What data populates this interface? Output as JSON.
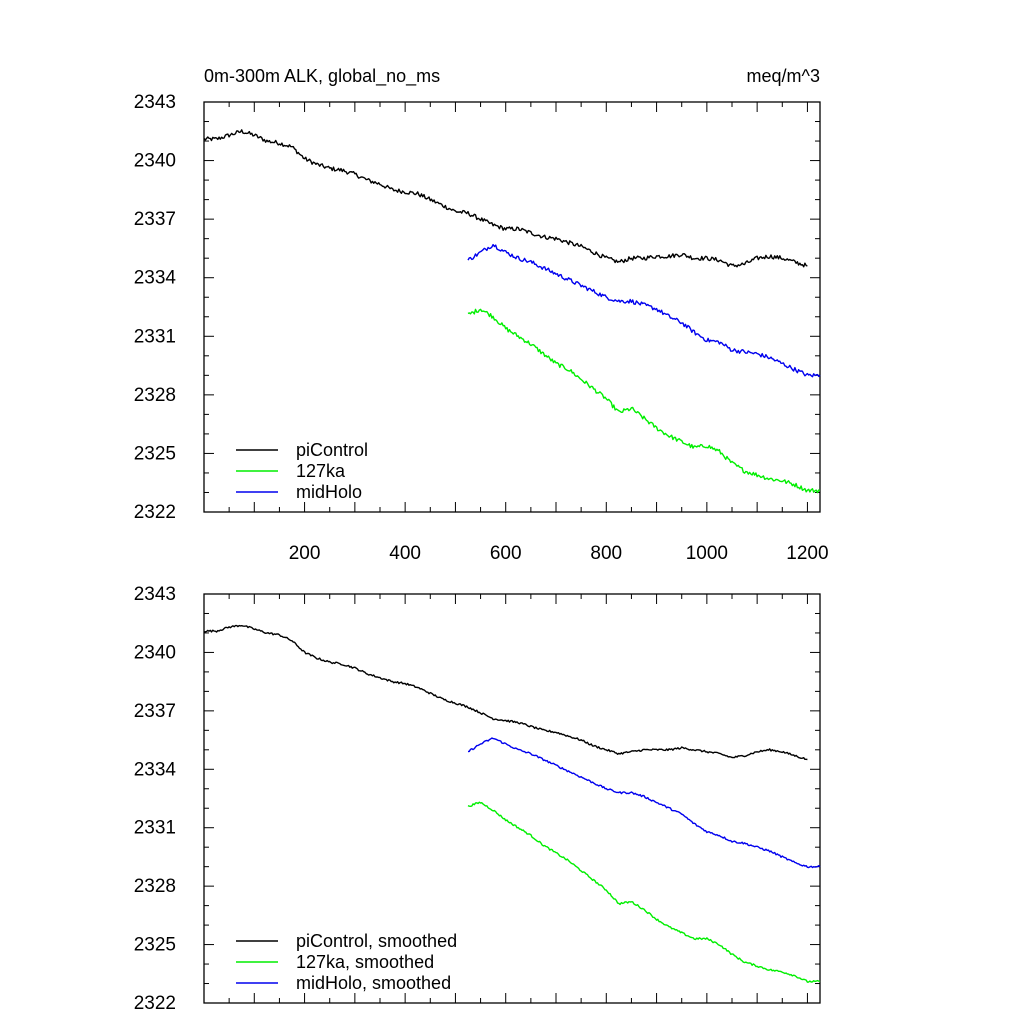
{
  "chart_data": [
    {
      "type": "line",
      "title": "0m-300m ALK, global_no_ms",
      "units": "meq/m^3",
      "xlim": [
        0,
        1225
      ],
      "ylim": [
        2322,
        2343
      ],
      "xticks": [
        200,
        400,
        600,
        800,
        1000,
        1200
      ],
      "xtick_labels": [
        "200",
        "400",
        "600",
        "800",
        "1000",
        "1200"
      ],
      "yticks": [
        2322,
        2325,
        2328,
        2331,
        2334,
        2337,
        2340,
        2343
      ],
      "ytick_labels": [
        "2322",
        "2325",
        "2328",
        "2331",
        "2334",
        "2337",
        "2340",
        "2343"
      ],
      "legend_position": "bottom-left",
      "series": [
        {
          "name": "piControl",
          "color": "#000000",
          "x": [
            0,
            25,
            50,
            75,
            100,
            125,
            150,
            175,
            200,
            225,
            250,
            275,
            300,
            325,
            350,
            375,
            400,
            425,
            450,
            475,
            500,
            525,
            550,
            575,
            600,
            625,
            650,
            675,
            700,
            725,
            750,
            775,
            800,
            825,
            850,
            875,
            900,
            925,
            950,
            975,
            1000,
            1025,
            1050,
            1075,
            1100,
            1125,
            1150,
            1175,
            1200
          ],
          "y": [
            2341.1,
            2341.1,
            2341.3,
            2341.5,
            2341.3,
            2341.0,
            2340.9,
            2340.7,
            2340.1,
            2339.8,
            2339.6,
            2339.5,
            2339.3,
            2339.0,
            2338.8,
            2338.5,
            2338.4,
            2338.3,
            2338.0,
            2337.7,
            2337.4,
            2337.3,
            2337.0,
            2336.7,
            2336.5,
            2336.5,
            2336.3,
            2336.1,
            2336.0,
            2335.8,
            2335.6,
            2335.3,
            2335.0,
            2334.8,
            2335.0,
            2335.0,
            2335.1,
            2335.1,
            2335.2,
            2335.0,
            2335.0,
            2334.9,
            2334.6,
            2334.7,
            2335.0,
            2335.1,
            2335.0,
            2334.8,
            2334.6
          ]
        },
        {
          "name": "127ka",
          "color": "#00ee00",
          "x": [
            525,
            550,
            575,
            600,
            625,
            650,
            675,
            700,
            725,
            750,
            775,
            800,
            825,
            850,
            875,
            900,
            925,
            950,
            975,
            1000,
            1025,
            1050,
            1075,
            1100,
            1125,
            1150,
            1175,
            1200,
            1225
          ],
          "y": [
            2332.1,
            2332.4,
            2332.0,
            2331.4,
            2331.0,
            2330.6,
            2330.1,
            2329.6,
            2329.3,
            2328.8,
            2328.3,
            2327.8,
            2327.1,
            2327.3,
            2326.8,
            2326.3,
            2325.9,
            2325.6,
            2325.3,
            2325.4,
            2325.1,
            2324.5,
            2324.1,
            2323.9,
            2323.7,
            2323.6,
            2323.4,
            2323.1,
            2323.1
          ]
        },
        {
          "name": "midHolo",
          "color": "#0000ee",
          "x": [
            525,
            550,
            575,
            600,
            625,
            650,
            675,
            700,
            725,
            750,
            775,
            800,
            825,
            850,
            875,
            900,
            925,
            950,
            975,
            1000,
            1025,
            1050,
            1075,
            1100,
            1125,
            1150,
            1175,
            1200,
            1225
          ],
          "y": [
            2334.9,
            2335.3,
            2335.7,
            2335.3,
            2335.0,
            2334.8,
            2334.5,
            2334.2,
            2333.9,
            2333.6,
            2333.3,
            2333.0,
            2332.8,
            2332.8,
            2332.6,
            2332.4,
            2332.0,
            2331.7,
            2331.2,
            2330.8,
            2330.7,
            2330.3,
            2330.2,
            2330.1,
            2329.9,
            2329.6,
            2329.3,
            2329.0,
            2329.0
          ]
        }
      ]
    },
    {
      "type": "line",
      "xlim": [
        0,
        1225
      ],
      "ylim": [
        2322,
        2343
      ],
      "xticks": [
        200,
        400,
        600,
        800,
        1000,
        1200
      ],
      "yticks": [
        2322,
        2325,
        2328,
        2331,
        2334,
        2337,
        2340,
        2343
      ],
      "ytick_labels": [
        "2322",
        "2325",
        "2328",
        "2331",
        "2334",
        "2337",
        "2340",
        "2343"
      ],
      "legend_position": "bottom-left",
      "series": [
        {
          "name": "piControl, smoothed",
          "color": "#000000",
          "x": [
            0,
            25,
            50,
            75,
            100,
            125,
            150,
            175,
            200,
            225,
            250,
            275,
            300,
            325,
            350,
            375,
            400,
            425,
            450,
            475,
            500,
            525,
            550,
            575,
            600,
            625,
            650,
            675,
            700,
            725,
            750,
            775,
            800,
            825,
            850,
            875,
            900,
            925,
            950,
            975,
            1000,
            1025,
            1050,
            1075,
            1100,
            1125,
            1150,
            1175,
            1200
          ],
          "y": [
            2341.1,
            2341.1,
            2341.3,
            2341.4,
            2341.2,
            2341.0,
            2340.9,
            2340.6,
            2340.0,
            2339.7,
            2339.5,
            2339.4,
            2339.2,
            2338.9,
            2338.7,
            2338.5,
            2338.4,
            2338.2,
            2337.9,
            2337.6,
            2337.4,
            2337.2,
            2336.9,
            2336.6,
            2336.5,
            2336.4,
            2336.2,
            2336.0,
            2335.9,
            2335.7,
            2335.5,
            2335.2,
            2335.0,
            2334.8,
            2334.9,
            2335.0,
            2335.0,
            2335.0,
            2335.1,
            2335.0,
            2334.9,
            2334.8,
            2334.6,
            2334.7,
            2334.9,
            2335.0,
            2334.9,
            2334.7,
            2334.5
          ]
        },
        {
          "name": "127ka, smoothed",
          "color": "#00ee00",
          "x": [
            525,
            550,
            575,
            600,
            625,
            650,
            675,
            700,
            725,
            750,
            775,
            800,
            825,
            850,
            875,
            900,
            925,
            950,
            975,
            1000,
            1025,
            1050,
            1075,
            1100,
            1125,
            1150,
            1175,
            1200,
            1225
          ],
          "y": [
            2332.1,
            2332.3,
            2331.9,
            2331.4,
            2331.0,
            2330.6,
            2330.1,
            2329.7,
            2329.3,
            2328.8,
            2328.3,
            2327.8,
            2327.1,
            2327.2,
            2326.8,
            2326.3,
            2325.9,
            2325.6,
            2325.3,
            2325.3,
            2325.0,
            2324.5,
            2324.1,
            2323.9,
            2323.7,
            2323.6,
            2323.4,
            2323.1,
            2323.1
          ]
        },
        {
          "name": "midHolo, smoothed",
          "color": "#0000ee",
          "x": [
            525,
            550,
            575,
            600,
            625,
            650,
            675,
            700,
            725,
            750,
            775,
            800,
            825,
            850,
            875,
            900,
            925,
            950,
            975,
            1000,
            1025,
            1050,
            1075,
            1100,
            1125,
            1150,
            1175,
            1200,
            1225
          ],
          "y": [
            2334.9,
            2335.3,
            2335.6,
            2335.3,
            2335.0,
            2334.8,
            2334.5,
            2334.2,
            2333.9,
            2333.6,
            2333.3,
            2333.0,
            2332.8,
            2332.8,
            2332.6,
            2332.3,
            2332.0,
            2331.7,
            2331.2,
            2330.8,
            2330.6,
            2330.3,
            2330.2,
            2330.0,
            2329.8,
            2329.5,
            2329.2,
            2329.0,
            2329.0
          ]
        }
      ]
    }
  ]
}
